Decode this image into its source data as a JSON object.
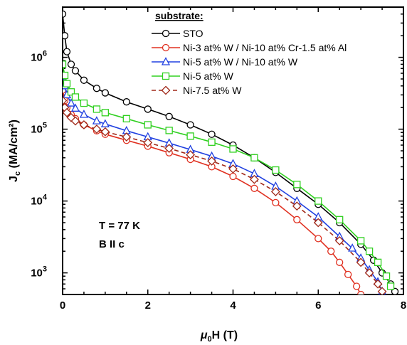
{
  "chart_data": {
    "type": "line",
    "title": "",
    "xlabel_main": "μ",
    "xlabel_sub": "0",
    "xlabel_rest": "H (T)",
    "ylabel_main": "J",
    "ylabel_sub": "c",
    "ylabel_rest": " (MA/cm²)",
    "xlim": [
      0,
      8
    ],
    "ylim_log": [
      500,
      5000000
    ],
    "y_scale": "log",
    "x_ticks": [
      "0",
      "2",
      "4",
      "6",
      "8"
    ],
    "x_tick_values": [
      0,
      2,
      4,
      6,
      8
    ],
    "y_ticks": [
      {
        "mantissa": "10",
        "exp": "3",
        "value": 1000
      },
      {
        "mantissa": "10",
        "exp": "4",
        "value": 10000
      },
      {
        "mantissa": "10",
        "exp": "5",
        "value": 100000
      },
      {
        "mantissa": "10",
        "exp": "6",
        "value": 1000000
      }
    ],
    "legend_title": "substrate:",
    "legend_position": "top-right",
    "annotations": [
      "T = 77 K",
      "B II c"
    ],
    "series": [
      {
        "name": "STO",
        "color": "#000000",
        "marker": "circle",
        "dashed": false,
        "x": [
          0,
          0.05,
          0.1,
          0.2,
          0.3,
          0.5,
          0.8,
          1.0,
          1.5,
          2.0,
          2.5,
          3.0,
          3.5,
          4.0,
          4.5,
          5.0,
          5.5,
          6.0,
          6.5,
          7.0,
          7.3,
          7.5,
          7.7,
          7.8
        ],
        "y": [
          4000000,
          2000000,
          1200000,
          800000,
          650000,
          480000,
          370000,
          320000,
          240000,
          190000,
          150000,
          115000,
          85000,
          60000,
          40000,
          25000,
          15000,
          9000,
          5000,
          2500,
          1500,
          1000,
          700,
          550
        ]
      },
      {
        "name": "Ni-3 at% W / Ni-10 at% Cr-1.5 at% Al",
        "color": "#e03020",
        "marker": "circle",
        "dashed": false,
        "x": [
          0,
          0.05,
          0.1,
          0.2,
          0.3,
          0.5,
          0.8,
          1.0,
          1.5,
          2.0,
          2.5,
          3.0,
          3.5,
          4.0,
          4.5,
          5.0,
          5.5,
          6.0,
          6.3,
          6.5,
          6.7,
          6.9,
          7.0
        ],
        "y": [
          350000,
          250000,
          200000,
          160000,
          140000,
          115000,
          95000,
          85000,
          70000,
          58000,
          47000,
          38000,
          30000,
          22000,
          15000,
          9500,
          5500,
          3000,
          2000,
          1400,
          950,
          650,
          500
        ]
      },
      {
        "name": "Ni-5 at% W / Ni-10 at% W",
        "color": "#2040e0",
        "marker": "triangle",
        "dashed": false,
        "x": [
          0,
          0.05,
          0.1,
          0.2,
          0.3,
          0.5,
          0.8,
          1.0,
          1.5,
          2.0,
          2.5,
          3.0,
          3.5,
          4.0,
          4.5,
          5.0,
          5.5,
          6.0,
          6.5,
          6.8,
          7.0,
          7.2,
          7.4,
          7.5
        ],
        "y": [
          550000,
          400000,
          300000,
          230000,
          195000,
          160000,
          130000,
          118000,
          95000,
          78000,
          64000,
          52000,
          42000,
          33000,
          24000,
          16000,
          10000,
          6000,
          3200,
          2200,
          1600,
          1100,
          750,
          550
        ]
      },
      {
        "name": "Ni-5 at% W",
        "color": "#30d020",
        "marker": "square",
        "dashed": false,
        "x": [
          0,
          0.05,
          0.1,
          0.2,
          0.3,
          0.5,
          0.8,
          1.0,
          1.5,
          2.0,
          2.5,
          3.0,
          3.5,
          4.0,
          4.5,
          5.0,
          5.5,
          6.0,
          6.5,
          7.0,
          7.2,
          7.4,
          7.6,
          7.7
        ],
        "y": [
          800000,
          560000,
          430000,
          330000,
          280000,
          230000,
          190000,
          170000,
          140000,
          115000,
          96000,
          80000,
          66000,
          53000,
          40000,
          27000,
          17000,
          10000,
          5500,
          2800,
          2000,
          1400,
          900,
          650
        ]
      },
      {
        "name": "Ni-7.5 at% W",
        "color": "#a02818",
        "marker": "diamond",
        "dashed": true,
        "x": [
          0,
          0.05,
          0.1,
          0.2,
          0.3,
          0.5,
          0.8,
          1.0,
          1.5,
          2.0,
          2.5,
          3.0,
          3.5,
          4.0,
          4.5,
          5.0,
          5.5,
          6.0,
          6.5,
          7.0,
          7.2,
          7.4,
          7.5
        ],
        "y": [
          250000,
          200000,
          170000,
          145000,
          130000,
          115000,
          100000,
          92000,
          78000,
          65000,
          54000,
          44000,
          36000,
          28000,
          20000,
          13500,
          8500,
          5000,
          2800,
          1400,
          1000,
          700,
          550
        ]
      }
    ]
  }
}
